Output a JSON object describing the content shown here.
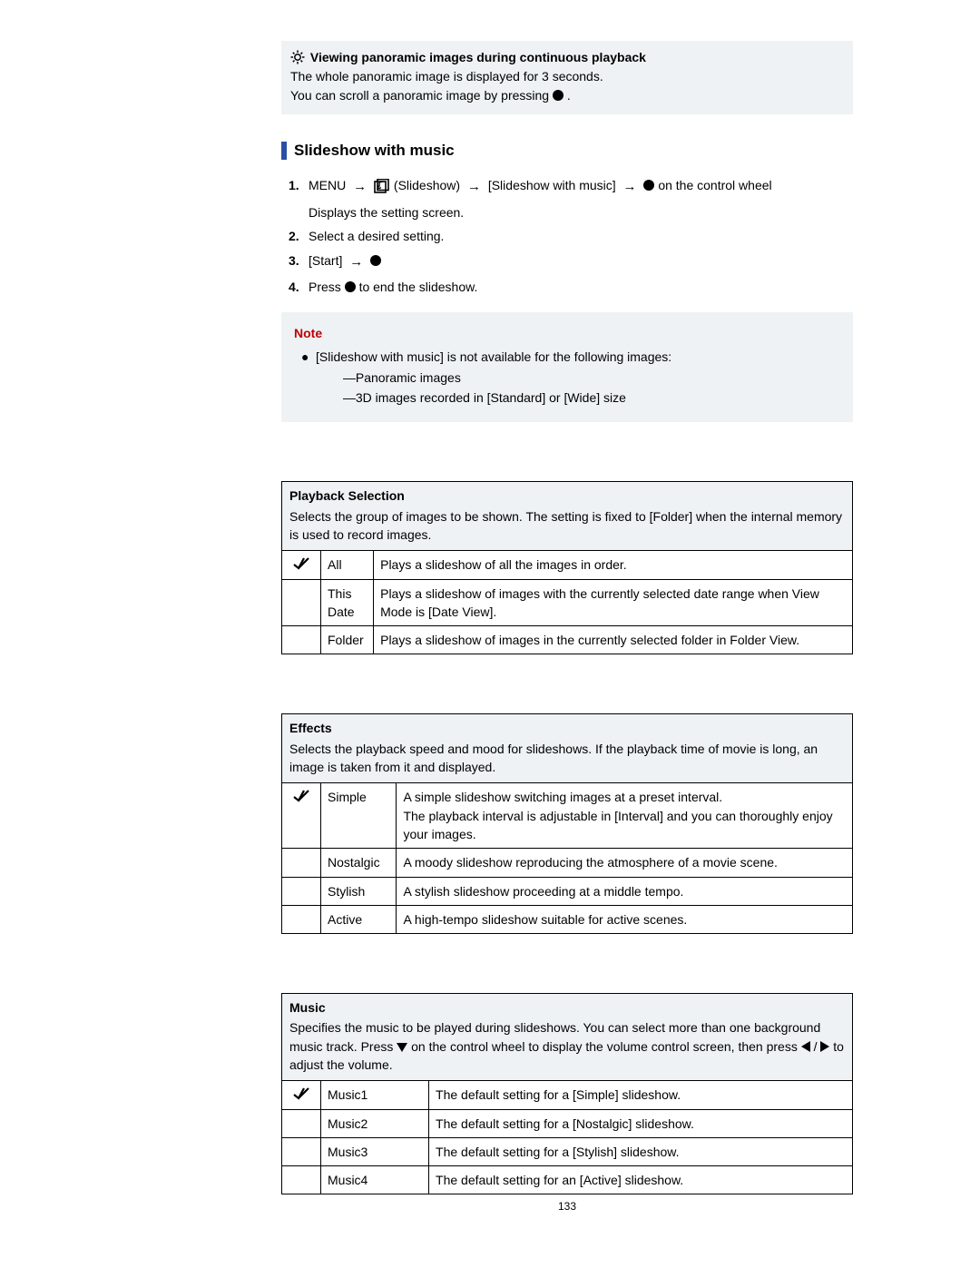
{
  "colors": {
    "accent_blue": "#2b4fa6",
    "note_red": "#c00000",
    "box_bg": "#eef2f4",
    "text": "#000000"
  },
  "tip": {
    "title": "Viewing panoramic images during continuous playback",
    "line1": "The whole panoramic image is displayed for 3 seconds.",
    "line2a": "You can scroll a panoramic image by pressing ",
    "line2b": "."
  },
  "section_title": "Slideshow with music",
  "steps": {
    "s1": {
      "num": "1.",
      "menu": "MENU",
      "slideshow": "(Slideshow)",
      "item": "[Slideshow with music]",
      "tail": " on the control wheel",
      "line2": "Displays the setting screen."
    },
    "s2": {
      "num": "2.",
      "text": "Select a desired setting."
    },
    "s3": {
      "num": "3.",
      "start": "[Start]"
    },
    "s4": {
      "num": "4.",
      "a": "Press ",
      "b": " to end the slideshow."
    }
  },
  "note": {
    "title": "Note",
    "line": "[Slideshow with music] is not available for the following images:",
    "sub1": "Panoramic images",
    "sub2": "3D images recorded in [Standard] or [Wide] size"
  },
  "table_playback": {
    "title": "Playback Selection",
    "desc": "Selects the group of images to be shown. The setting is fixed to [Folder] when the internal memory is used to record images.",
    "rows": [
      {
        "check": true,
        "name": "All",
        "desc": "Plays a slideshow of all the images in order."
      },
      {
        "check": false,
        "name": "This Date",
        "desc": "Plays a slideshow of images with the currently selected date range when View Mode is [Date View]."
      },
      {
        "check": false,
        "name": "Folder",
        "desc": "Plays a slideshow of images in the currently selected folder in Folder View."
      }
    ]
  },
  "table_effects": {
    "title": "Effects",
    "desc": "Selects the playback speed and mood for slideshows. If the playback time of movie is long, an image is taken from it and displayed.",
    "rows": [
      {
        "check": true,
        "name": "Simple",
        "desc": "A simple slideshow switching images at a preset interval.\nThe playback interval is adjustable in [Interval] and you can thoroughly enjoy your images."
      },
      {
        "check": false,
        "name": "Nostalgic",
        "desc": "A moody slideshow reproducing the atmosphere of a movie scene."
      },
      {
        "check": false,
        "name": "Stylish",
        "desc": "A stylish slideshow proceeding at a middle tempo."
      },
      {
        "check": false,
        "name": "Active",
        "desc": "A high-tempo slideshow suitable for active scenes."
      }
    ]
  },
  "table_music": {
    "title": "Music",
    "desc_a": "Specifies the music to be played during slideshows. You can select more than one background music track. Press ",
    "desc_b": " on the control wheel to display the volume control screen, then press ",
    "desc_c": " / ",
    "desc_d": " to adjust the volume.",
    "rows": [
      {
        "check": true,
        "name": "Music1",
        "desc": "The default setting for a [Simple] slideshow."
      },
      {
        "check": false,
        "name": "Music2",
        "desc": "The default setting for a [Nostalgic] slideshow."
      },
      {
        "check": false,
        "name": "Music3",
        "desc": "The default setting for a [Stylish] slideshow."
      },
      {
        "check": false,
        "name": "Music4",
        "desc": "The default setting for an [Active] slideshow."
      }
    ]
  },
  "page_number": "133"
}
